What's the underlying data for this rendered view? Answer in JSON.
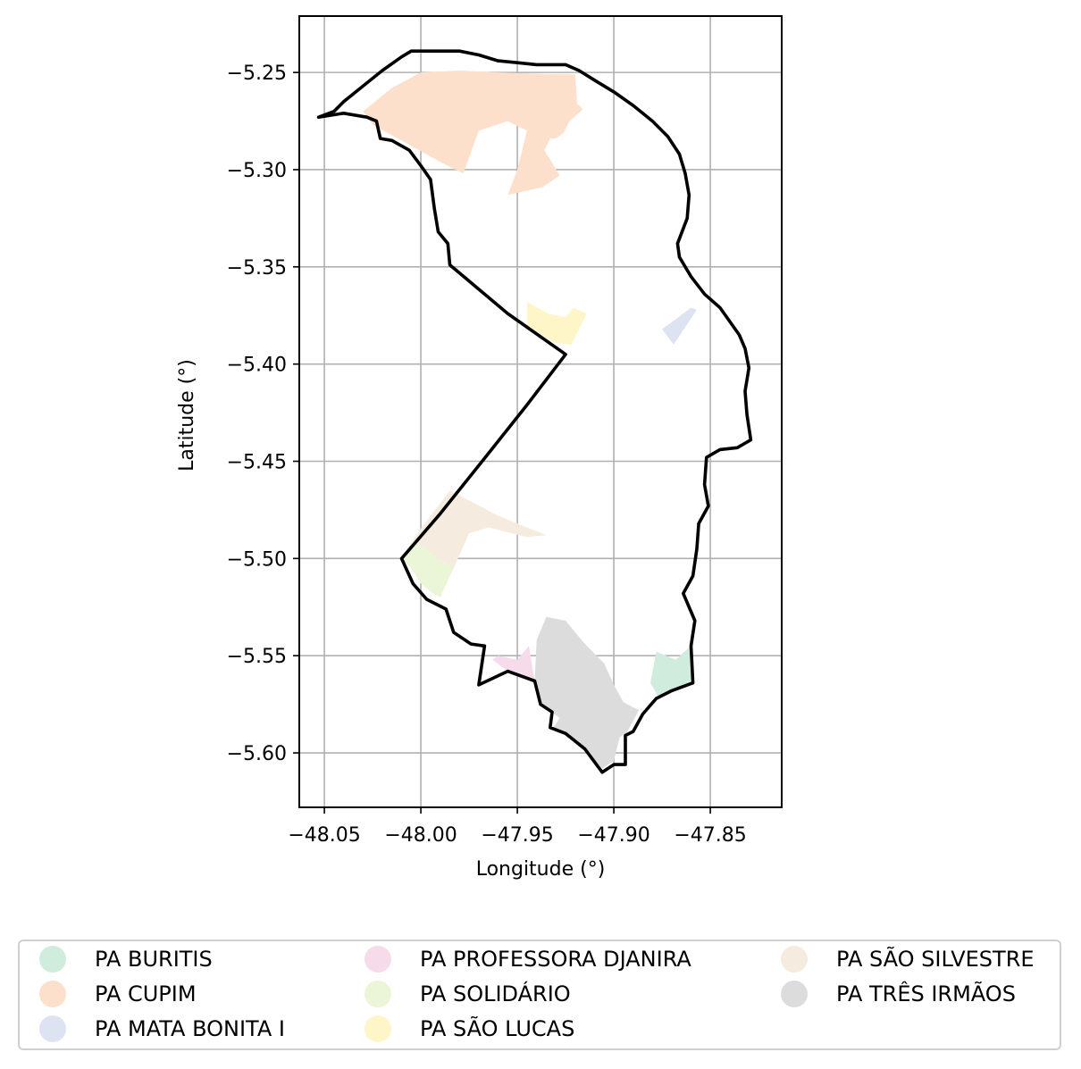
{
  "map": {
    "xlabel": "Longitude (°)",
    "ylabel": "Latitude (°)",
    "xlim": [
      -48.063,
      -47.813
    ],
    "ylim": [
      -5.628,
      -5.221
    ],
    "x_ticks": [
      -48.05,
      -48.0,
      -47.95,
      -47.9,
      -47.85
    ],
    "x_tick_labels": [
      "−48.05",
      "−48.00",
      "−47.95",
      "−47.90",
      "−47.85"
    ],
    "y_ticks": [
      -5.25,
      -5.3,
      -5.35,
      -5.4,
      -5.45,
      -5.5,
      -5.55,
      -5.6
    ],
    "y_tick_labels": [
      "−5.25",
      "−5.30",
      "−5.35",
      "−5.40",
      "−5.45",
      "−5.50",
      "−5.55",
      "−5.60"
    ],
    "grid": true,
    "boundary_color": "#000000",
    "boundary": [
      [
        -48.053,
        -5.273
      ],
      [
        -48.045,
        -5.27
      ],
      [
        -48.04,
        -5.265
      ],
      [
        -48.03,
        -5.257
      ],
      [
        -48.02,
        -5.249
      ],
      [
        -48.01,
        -5.242
      ],
      [
        -48.005,
        -5.239
      ],
      [
        -47.995,
        -5.239
      ],
      [
        -47.98,
        -5.239
      ],
      [
        -47.97,
        -5.241
      ],
      [
        -47.96,
        -5.244
      ],
      [
        -47.95,
        -5.245
      ],
      [
        -47.94,
        -5.246
      ],
      [
        -47.925,
        -5.246
      ],
      [
        -47.918,
        -5.249
      ],
      [
        -47.91,
        -5.254
      ],
      [
        -47.9,
        -5.26
      ],
      [
        -47.89,
        -5.267
      ],
      [
        -47.88,
        -5.275
      ],
      [
        -47.872,
        -5.283
      ],
      [
        -47.866,
        -5.292
      ],
      [
        -47.863,
        -5.302
      ],
      [
        -47.861,
        -5.313
      ],
      [
        -47.862,
        -5.325
      ],
      [
        -47.867,
        -5.338
      ],
      [
        -47.866,
        -5.345
      ],
      [
        -47.86,
        -5.355
      ],
      [
        -47.853,
        -5.364
      ],
      [
        -47.845,
        -5.371
      ],
      [
        -47.835,
        -5.385
      ],
      [
        -47.832,
        -5.392
      ],
      [
        -47.83,
        -5.402
      ],
      [
        -47.832,
        -5.414
      ],
      [
        -47.831,
        -5.426
      ],
      [
        -47.829,
        -5.439
      ],
      [
        -47.836,
        -5.443
      ],
      [
        -47.845,
        -5.444
      ],
      [
        -47.852,
        -5.448
      ],
      [
        -47.853,
        -5.462
      ],
      [
        -47.851,
        -5.473
      ],
      [
        -47.856,
        -5.482
      ],
      [
        -47.857,
        -5.495
      ],
      [
        -47.859,
        -5.509
      ],
      [
        -47.864,
        -5.518
      ],
      [
        -47.858,
        -5.532
      ],
      [
        -47.86,
        -5.545
      ],
      [
        -47.859,
        -5.564
      ],
      [
        -47.87,
        -5.568
      ],
      [
        -47.878,
        -5.572
      ],
      [
        -47.885,
        -5.58
      ],
      [
        -47.89,
        -5.589
      ],
      [
        -47.894,
        -5.591
      ],
      [
        -47.894,
        -5.606
      ],
      [
        -47.9,
        -5.606
      ],
      [
        -47.906,
        -5.61
      ],
      [
        -47.915,
        -5.598
      ],
      [
        -47.925,
        -5.59
      ],
      [
        -47.933,
        -5.587
      ],
      [
        -47.932,
        -5.579
      ],
      [
        -47.938,
        -5.575
      ],
      [
        -47.941,
        -5.563
      ],
      [
        -47.955,
        -5.558
      ],
      [
        -47.97,
        -5.565
      ],
      [
        -47.967,
        -5.545
      ],
      [
        -47.974,
        -5.544
      ],
      [
        -47.983,
        -5.538
      ],
      [
        -47.987,
        -5.526
      ],
      [
        -47.997,
        -5.521
      ],
      [
        -48.004,
        -5.513
      ],
      [
        -48.01,
        -5.5
      ],
      [
        -47.99,
        -5.477
      ],
      [
        -47.965,
        -5.446
      ],
      [
        -47.945,
        -5.421
      ],
      [
        -47.925,
        -5.395
      ],
      [
        -47.955,
        -5.374
      ],
      [
        -47.985,
        -5.349
      ],
      [
        -47.986,
        -5.338
      ],
      [
        -47.991,
        -5.332
      ],
      [
        -47.993,
        -5.32
      ],
      [
        -47.995,
        -5.305
      ],
      [
        -48.0,
        -5.298
      ],
      [
        -48.006,
        -5.29
      ],
      [
        -48.015,
        -5.285
      ],
      [
        -48.021,
        -5.284
      ],
      [
        -48.023,
        -5.275
      ],
      [
        -48.028,
        -5.273
      ],
      [
        -48.04,
        -5.271
      ],
      [
        -48.053,
        -5.273
      ]
    ],
    "features": [
      {
        "name": "PA BURITIS",
        "color": "#d0ecdc",
        "polygons": [
          [
            [
              -47.878,
              -5.548
            ],
            [
              -47.868,
              -5.552
            ],
            [
              -47.86,
              -5.545
            ],
            [
              -47.86,
              -5.564
            ],
            [
              -47.87,
              -5.568
            ],
            [
              -47.877,
              -5.571
            ],
            [
              -47.881,
              -5.564
            ]
          ]
        ]
      },
      {
        "name": "PA CUPIM",
        "color": "#fde0cb",
        "polygons": [
          [
            [
              -48.03,
              -5.27
            ],
            [
              -48.015,
              -5.258
            ],
            [
              -48.0,
              -5.25
            ],
            [
              -47.98,
              -5.249
            ],
            [
              -47.96,
              -5.25
            ],
            [
              -47.93,
              -5.251
            ],
            [
              -47.92,
              -5.251
            ],
            [
              -47.919,
              -5.266
            ],
            [
              -47.916,
              -5.269
            ],
            [
              -47.923,
              -5.275
            ],
            [
              -47.926,
              -5.281
            ],
            [
              -47.93,
              -5.284
            ],
            [
              -47.933,
              -5.284
            ],
            [
              -47.936,
              -5.29
            ],
            [
              -47.928,
              -5.303
            ],
            [
              -47.937,
              -5.309
            ],
            [
              -47.955,
              -5.313
            ],
            [
              -47.95,
              -5.3
            ],
            [
              -47.945,
              -5.28
            ],
            [
              -47.955,
              -5.275
            ],
            [
              -47.97,
              -5.28
            ],
            [
              -47.978,
              -5.302
            ],
            [
              -47.99,
              -5.296
            ],
            [
              -48.01,
              -5.285
            ],
            [
              -48.025,
              -5.277
            ]
          ]
        ]
      },
      {
        "name": "PA MATA BONITA I",
        "color": "#dde3f1",
        "polygons": [
          [
            [
              -47.875,
              -5.382
            ],
            [
              -47.868,
              -5.377
            ],
            [
              -47.86,
              -5.371
            ],
            [
              -47.857,
              -5.372
            ],
            [
              -47.863,
              -5.381
            ],
            [
              -47.869,
              -5.39
            ]
          ]
        ]
      },
      {
        "name": "PA PROFESSORA DJANIRA",
        "color": "#f6dceb",
        "polygons": [
          [
            [
              -47.96,
              -5.55
            ],
            [
              -47.95,
              -5.552
            ],
            [
              -47.944,
              -5.545
            ],
            [
              -47.941,
              -5.563
            ],
            [
              -47.955,
              -5.558
            ],
            [
              -47.963,
              -5.552
            ]
          ]
        ]
      },
      {
        "name": "PA SOLIDÁRIO",
        "color": "#ebf5d7",
        "polygons": [
          [
            [
              -48.01,
              -5.5
            ],
            [
              -48.004,
              -5.49
            ],
            [
              -47.991,
              -5.5
            ],
            [
              -47.983,
              -5.505
            ],
            [
              -47.99,
              -5.52
            ],
            [
              -47.995,
              -5.517
            ],
            [
              -48.0,
              -5.513
            ],
            [
              -48.005,
              -5.505
            ]
          ]
        ]
      },
      {
        "name": "PA SÃO LUCAS",
        "color": "#fef5c8",
        "polygons": [
          [
            [
              -47.945,
              -5.368
            ],
            [
              -47.934,
              -5.374
            ],
            [
              -47.925,
              -5.376
            ],
            [
              -47.921,
              -5.371
            ],
            [
              -47.914,
              -5.374
            ],
            [
              -47.922,
              -5.39
            ],
            [
              -47.931,
              -5.389
            ],
            [
              -47.945,
              -5.38
            ]
          ]
        ]
      },
      {
        "name": "PA SÃO SILVESTRE",
        "color": "#f5ebde",
        "polygons": [
          [
            [
              -48.004,
              -5.49
            ],
            [
              -47.985,
              -5.465
            ],
            [
              -47.96,
              -5.478
            ],
            [
              -47.935,
              -5.488
            ],
            [
              -47.945,
              -5.489
            ],
            [
              -47.965,
              -5.484
            ],
            [
              -47.975,
              -5.487
            ],
            [
              -47.983,
              -5.505
            ],
            [
              -47.991,
              -5.5
            ]
          ]
        ]
      },
      {
        "name": "PA TRÊS IRMÃOS",
        "color": "#dcdcdc",
        "polygons": [
          [
            [
              -47.94,
              -5.542
            ],
            [
              -47.935,
              -5.53
            ],
            [
              -47.925,
              -5.532
            ],
            [
              -47.915,
              -5.544
            ],
            [
              -47.905,
              -5.554
            ],
            [
              -47.9,
              -5.565
            ],
            [
              -47.895,
              -5.574
            ],
            [
              -47.887,
              -5.578
            ],
            [
              -47.893,
              -5.589
            ],
            [
              -47.897,
              -5.592
            ],
            [
              -47.9,
              -5.604
            ],
            [
              -47.906,
              -5.608
            ],
            [
              -47.915,
              -5.598
            ],
            [
              -47.925,
              -5.59
            ],
            [
              -47.932,
              -5.588
            ],
            [
              -47.928,
              -5.582
            ],
            [
              -47.938,
              -5.575
            ],
            [
              -47.941,
              -5.563
            ]
          ]
        ]
      }
    ]
  },
  "legend": {
    "items": [
      {
        "label": "PA BURITIS",
        "color": "#d0ecdc"
      },
      {
        "label": "PA CUPIM",
        "color": "#fde0cb"
      },
      {
        "label": "PA MATA BONITA I",
        "color": "#dde3f1"
      },
      {
        "label": "PA PROFESSORA DJANIRA",
        "color": "#f6dceb"
      },
      {
        "label": "PA SOLIDÁRIO",
        "color": "#ebf5d7"
      },
      {
        "label": "PA SÃO LUCAS",
        "color": "#fef5c8"
      },
      {
        "label": "PA SÃO SILVESTRE",
        "color": "#f5ebde"
      },
      {
        "label": "PA TRÊS IRMÃOS",
        "color": "#dcdcdc"
      }
    ],
    "columns": 3,
    "placement": "bottom"
  }
}
